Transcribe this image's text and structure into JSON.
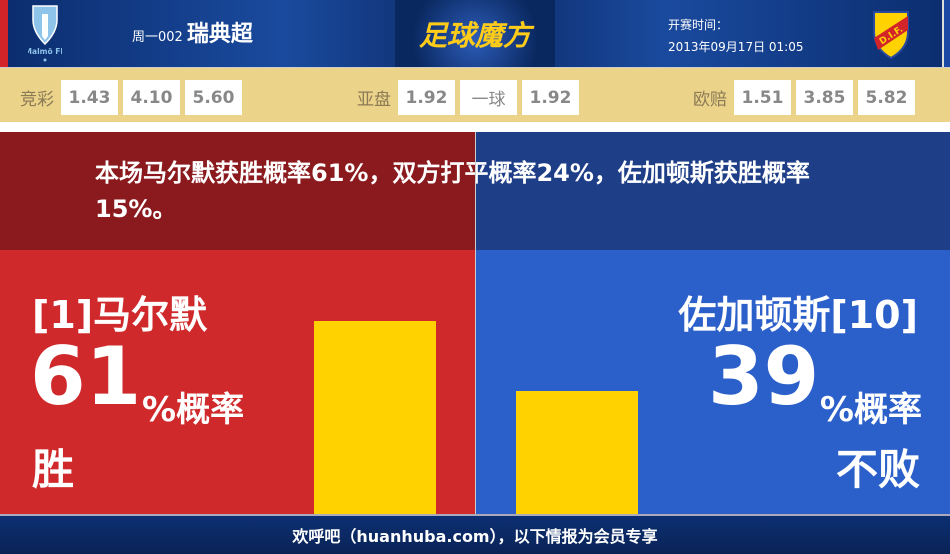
{
  "header": {
    "league_code": "周一002",
    "league_name": "瑞典超",
    "brand": "足球魔方",
    "time_label": "开赛时间：",
    "time_value": "2013年09月17日 01:05",
    "home_logo_text": "Malmö FF",
    "away_logo_text": "D.I.F."
  },
  "odds": [
    {
      "label": "竞彩",
      "values": [
        "1.43",
        "4.10",
        "5.60"
      ]
    },
    {
      "label": "亚盘",
      "values": [
        "1.92",
        "一球",
        "1.92"
      ]
    },
    {
      "label": "欧赔",
      "values": [
        "1.51",
        "3.85",
        "5.82"
      ]
    }
  ],
  "summary": "本场马尔默获胜概率61%，双方打平概率24%，佐加顿斯获胜概率15%。",
  "home": {
    "team": "[1]马尔默",
    "percent": "61",
    "percent_label": "%概率",
    "outcome": "胜",
    "color": "#cf292b"
  },
  "away": {
    "team": "佐加顿斯[10]",
    "percent": "39",
    "percent_label": "%概率",
    "outcome": "不败",
    "color": "#2b5fc9"
  },
  "chart_data": {
    "type": "bar",
    "categories": [
      "马尔默 胜",
      "佐加顿斯 不败"
    ],
    "values": [
      61,
      39
    ],
    "bar_color": "#ffd200"
  },
  "footer": "欢呼吧（huanhuba.com），以下情报为会员专享"
}
